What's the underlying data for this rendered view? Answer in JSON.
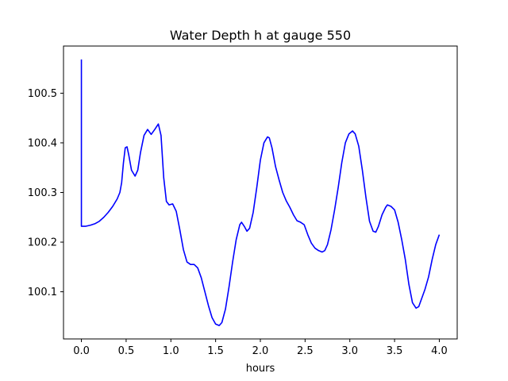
{
  "chart_data": {
    "type": "line",
    "title": "Water Depth h at gauge 550",
    "xlabel": "hours",
    "ylabel": "",
    "xlim": [
      -0.2,
      4.2
    ],
    "ylim": [
      100.005,
      100.595
    ],
    "xticks": [
      0.0,
      0.5,
      1.0,
      1.5,
      2.0,
      2.5,
      3.0,
      3.5,
      4.0
    ],
    "xtick_labels": [
      "0.0",
      "0.5",
      "1.0",
      "1.5",
      "2.0",
      "2.5",
      "3.0",
      "3.5",
      "4.0"
    ],
    "yticks": [
      100.1,
      100.2,
      100.3,
      100.4,
      100.5
    ],
    "ytick_labels": [
      "100.1",
      "100.2",
      "100.3",
      "100.4",
      "100.5"
    ],
    "grid": false,
    "legend": "none",
    "series": [
      {
        "name": "",
        "color": "#0000ff",
        "points": [
          [
            0.0,
            100.568
          ],
          [
            0.0,
            100.232
          ],
          [
            0.05,
            100.232
          ],
          [
            0.1,
            100.234
          ],
          [
            0.15,
            100.237
          ],
          [
            0.2,
            100.242
          ],
          [
            0.25,
            100.25
          ],
          [
            0.3,
            100.26
          ],
          [
            0.35,
            100.272
          ],
          [
            0.4,
            100.287
          ],
          [
            0.43,
            100.3
          ],
          [
            0.45,
            100.32
          ],
          [
            0.47,
            100.36
          ],
          [
            0.49,
            100.39
          ],
          [
            0.51,
            100.392
          ],
          [
            0.53,
            100.375
          ],
          [
            0.56,
            100.345
          ],
          [
            0.6,
            100.333
          ],
          [
            0.63,
            100.345
          ],
          [
            0.66,
            100.38
          ],
          [
            0.7,
            100.415
          ],
          [
            0.74,
            100.427
          ],
          [
            0.78,
            100.417
          ],
          [
            0.82,
            100.427
          ],
          [
            0.86,
            100.438
          ],
          [
            0.89,
            100.415
          ],
          [
            0.92,
            100.33
          ],
          [
            0.95,
            100.282
          ],
          [
            0.98,
            100.275
          ],
          [
            1.02,
            100.277
          ],
          [
            1.06,
            100.262
          ],
          [
            1.1,
            100.225
          ],
          [
            1.14,
            100.185
          ],
          [
            1.18,
            100.16
          ],
          [
            1.22,
            100.155
          ],
          [
            1.26,
            100.155
          ],
          [
            1.3,
            100.148
          ],
          [
            1.34,
            100.128
          ],
          [
            1.38,
            100.1
          ],
          [
            1.42,
            100.072
          ],
          [
            1.46,
            100.048
          ],
          [
            1.5,
            100.035
          ],
          [
            1.54,
            100.032
          ],
          [
            1.57,
            100.038
          ],
          [
            1.61,
            100.065
          ],
          [
            1.65,
            100.11
          ],
          [
            1.69,
            100.16
          ],
          [
            1.73,
            100.205
          ],
          [
            1.77,
            100.235
          ],
          [
            1.79,
            100.24
          ],
          [
            1.82,
            100.232
          ],
          [
            1.85,
            100.222
          ],
          [
            1.88,
            100.228
          ],
          [
            1.92,
            100.26
          ],
          [
            1.96,
            100.31
          ],
          [
            2.0,
            100.365
          ],
          [
            2.04,
            100.4
          ],
          [
            2.08,
            100.412
          ],
          [
            2.1,
            100.41
          ],
          [
            2.13,
            100.39
          ],
          [
            2.17,
            100.352
          ],
          [
            2.21,
            100.325
          ],
          [
            2.25,
            100.3
          ],
          [
            2.29,
            100.283
          ],
          [
            2.33,
            100.27
          ],
          [
            2.37,
            100.255
          ],
          [
            2.41,
            100.243
          ],
          [
            2.45,
            100.24
          ],
          [
            2.49,
            100.235
          ],
          [
            2.53,
            100.215
          ],
          [
            2.57,
            100.198
          ],
          [
            2.61,
            100.188
          ],
          [
            2.65,
            100.183
          ],
          [
            2.69,
            100.18
          ],
          [
            2.72,
            100.183
          ],
          [
            2.75,
            100.195
          ],
          [
            2.79,
            100.225
          ],
          [
            2.83,
            100.265
          ],
          [
            2.87,
            100.31
          ],
          [
            2.91,
            100.36
          ],
          [
            2.95,
            100.4
          ],
          [
            2.99,
            100.418
          ],
          [
            3.03,
            100.424
          ],
          [
            3.06,
            100.418
          ],
          [
            3.1,
            100.393
          ],
          [
            3.14,
            100.345
          ],
          [
            3.18,
            100.29
          ],
          [
            3.22,
            100.242
          ],
          [
            3.26,
            100.222
          ],
          [
            3.29,
            100.22
          ],
          [
            3.32,
            100.232
          ],
          [
            3.36,
            100.255
          ],
          [
            3.4,
            100.27
          ],
          [
            3.42,
            100.275
          ],
          [
            3.46,
            100.272
          ],
          [
            3.5,
            100.265
          ],
          [
            3.54,
            100.24
          ],
          [
            3.58,
            100.205
          ],
          [
            3.62,
            100.165
          ],
          [
            3.66,
            100.115
          ],
          [
            3.7,
            100.078
          ],
          [
            3.74,
            100.067
          ],
          [
            3.77,
            100.07
          ],
          [
            3.8,
            100.085
          ],
          [
            3.84,
            100.105
          ],
          [
            3.88,
            100.13
          ],
          [
            3.92,
            100.165
          ],
          [
            3.96,
            100.195
          ],
          [
            4.0,
            100.215
          ]
        ]
      }
    ]
  }
}
